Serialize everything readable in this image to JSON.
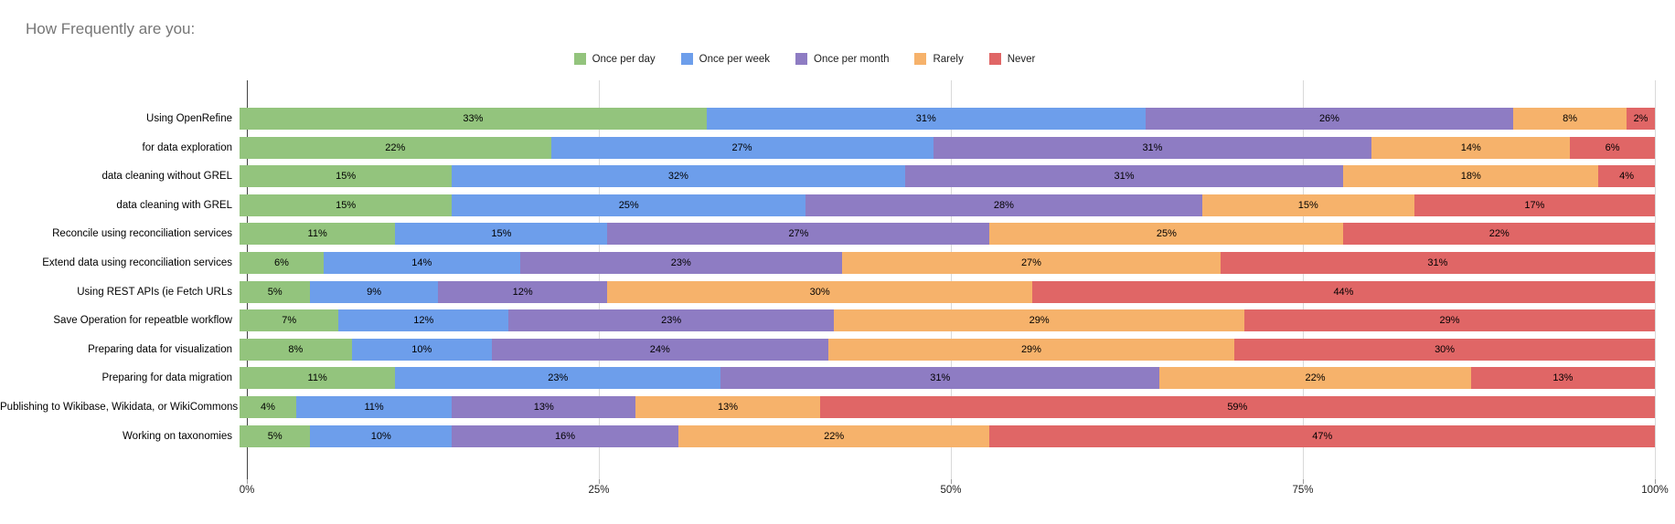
{
  "page": {
    "title": "How Frequently are you:"
  },
  "chart_data": {
    "type": "bar",
    "variant": "stacked-horizontal",
    "title": "How Frequently are you:",
    "title_color": "#757575",
    "background": "#ffffff",
    "grid": true,
    "gridline_color": "#d9d9d9",
    "axis_color": "#424242",
    "legend_position": "top-center",
    "xlabel": "",
    "ylabel": "",
    "xlim": [
      0,
      100
    ],
    "x_ticks": [
      "0%",
      "25%",
      "50%",
      "75%",
      "100%"
    ],
    "value_suffix": "%",
    "categories": [
      "Using OpenRefine",
      "for data exploration",
      "data cleaning without GREL",
      "data cleaning with GREL",
      "Reconcile using reconciliation services",
      "Extend data using reconciliation services",
      "Using REST APIs (ie Fetch URLs",
      "Save Operation for repeatble workflow",
      "Preparing data for visualization",
      "Preparing for data migration",
      "Publishing to Wikibase, Wikidata, or WikiCommons",
      "Working on taxonomies"
    ],
    "series": [
      {
        "name": "Once per day",
        "color": "#93c47d",
        "values": [
          33,
          22,
          15,
          15,
          11,
          6,
          5,
          7,
          8,
          11,
          4,
          5
        ]
      },
      {
        "name": "Once per week",
        "color": "#6d9eeb",
        "values": [
          31,
          27,
          32,
          25,
          15,
          14,
          9,
          12,
          10,
          23,
          11,
          10
        ]
      },
      {
        "name": "Once per month",
        "color": "#8e7cc3",
        "values": [
          26,
          31,
          31,
          28,
          27,
          23,
          12,
          23,
          24,
          31,
          13,
          16
        ]
      },
      {
        "name": "Rarely",
        "color": "#f6b26b",
        "values": [
          8,
          14,
          18,
          15,
          25,
          27,
          30,
          29,
          29,
          22,
          13,
          22
        ]
      },
      {
        "name": "Never",
        "color": "#e06666",
        "values": [
          2,
          6,
          4,
          17,
          22,
          31,
          44,
          29,
          30,
          13,
          59,
          47
        ]
      }
    ]
  }
}
